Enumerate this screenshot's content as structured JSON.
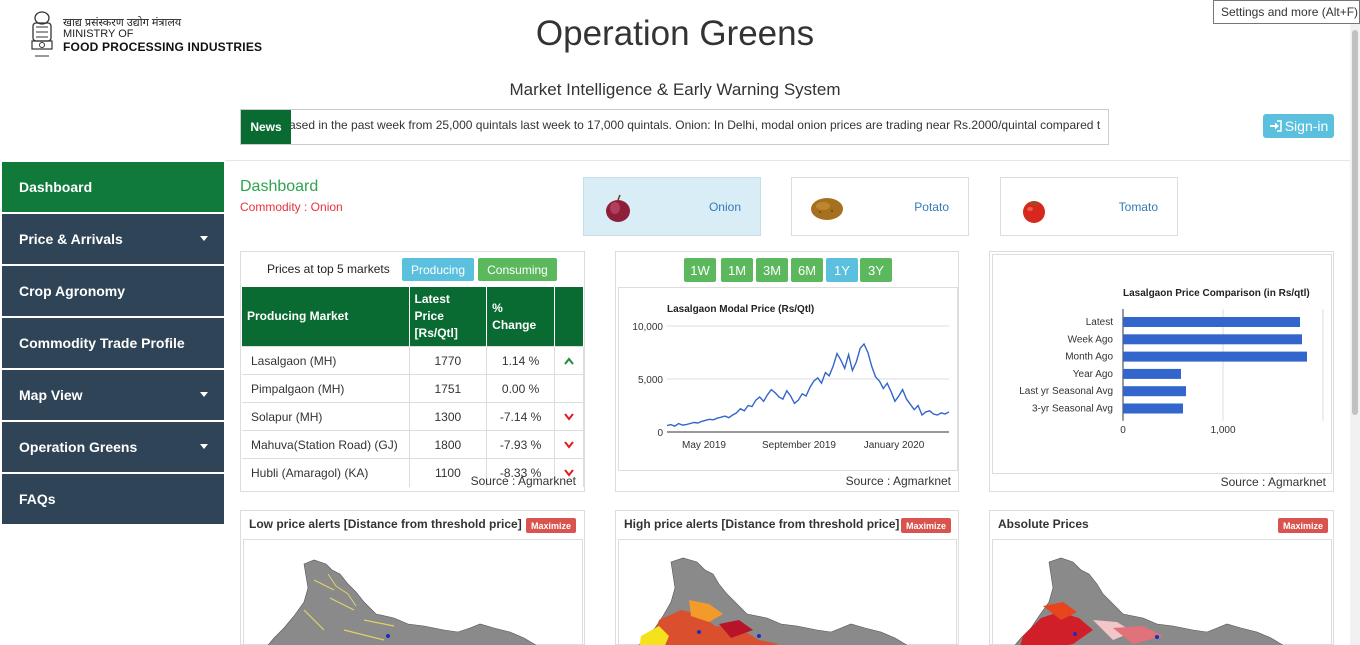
{
  "browser": {
    "tooltip": "Settings and more (Alt+F)"
  },
  "header": {
    "logo": {
      "hindi": "खाद्य प्रसंस्करण उद्योग मंत्रालय",
      "line1": "MINISTRY OF",
      "line2": "FOOD PROCESSING INDUSTRIES"
    },
    "title": "Operation Greens",
    "subtitle": "Market Intelligence & Early Warning System",
    "news_label": "News",
    "news_text": "ased in the past week from 25,000 quintals last week to 17,000 quintals. Onion: In Delhi, modal onion prices are trading near Rs.2000/quintal compared t",
    "signin": "Sign-in"
  },
  "sidebar": {
    "items": [
      {
        "label": "Dashboard",
        "active": true,
        "dropdown": false
      },
      {
        "label": "Price & Arrivals",
        "active": false,
        "dropdown": true
      },
      {
        "label": "Crop Agronomy",
        "active": false,
        "dropdown": false
      },
      {
        "label": "Commodity Trade Profile",
        "active": false,
        "dropdown": false
      },
      {
        "label": "Map View",
        "active": false,
        "dropdown": true
      },
      {
        "label": "Operation Greens",
        "active": false,
        "dropdown": true
      },
      {
        "label": "FAQs",
        "active": false,
        "dropdown": false
      }
    ]
  },
  "dashboard": {
    "title": "Dashboard",
    "commodity_label": "Commodity : Onion",
    "commodities": [
      {
        "name": "Onion",
        "icon": "onion-icon",
        "selected": true
      },
      {
        "name": "Potato",
        "icon": "potato-icon",
        "selected": false
      },
      {
        "name": "Tomato",
        "icon": "tomato-icon",
        "selected": false
      }
    ]
  },
  "prices_panel": {
    "title": "Prices at top 5 markets",
    "tab_producing": "Producing",
    "tab_consuming": "Consuming",
    "columns": [
      "Producing Market",
      "Latest Price [Rs/Qtl]",
      "% Change",
      ""
    ],
    "rows": [
      {
        "market": "Lasalgaon (MH)",
        "price": "1770",
        "change": "1.14 %",
        "trend": "up"
      },
      {
        "market": "Pimpalgaon (MH)",
        "price": "1751",
        "change": "0.00 %",
        "trend": "none"
      },
      {
        "market": "Solapur (MH)",
        "price": "1300",
        "change": "-7.14 %",
        "trend": "down"
      },
      {
        "market": "Mahuva(Station Road) (GJ)",
        "price": "1800",
        "change": "-7.93 %",
        "trend": "down"
      },
      {
        "market": "Hubli (Amaragol) (KA)",
        "price": "1100",
        "change": "-8.33 %",
        "trend": "down"
      }
    ],
    "source": "Source : Agmarknet"
  },
  "trend_panel": {
    "ranges": [
      "1W",
      "1M",
      "3M",
      "6M",
      "1Y",
      "3Y"
    ],
    "active_range": "1Y",
    "source": "Source : Agmarknet"
  },
  "bars_panel": {
    "source": "Source : Agmarknet"
  },
  "alerts": {
    "low": "Low price alerts [Distance from threshold price]",
    "high": "High price alerts [Distance from threshold price]",
    "absolute": "Absolute Prices",
    "maximize": "Maximize"
  },
  "colors": {
    "green": "#0a6b32",
    "nav": "#2f4457",
    "accent_button": "#5cb85c",
    "info_button": "#5bc0de",
    "bar": "#3366cc",
    "alert": "#d9534f"
  },
  "chart_data": [
    {
      "type": "line",
      "title": "Lasalgaon Modal Price (Rs/Qtl)",
      "x_ticks": [
        "May 2019",
        "September 2019",
        "January 2020"
      ],
      "y_ticks": [
        "0",
        "5,000",
        "10,000"
      ],
      "ylim": [
        0,
        10000
      ],
      "series": [
        {
          "values": [
            600,
            700,
            550,
            800,
            650,
            700,
            800,
            900,
            850,
            1000,
            1100,
            1200,
            1150,
            1300,
            1400,
            1500,
            1350,
            1600,
            1800,
            2200,
            2000,
            2500,
            2400,
            3000,
            3300,
            2900,
            3500,
            4000,
            3700,
            3300,
            3100,
            3900,
            3400,
            2700,
            3000,
            3600,
            3400,
            4200,
            4800,
            5100,
            4600,
            5600,
            5300,
            6200,
            7400,
            6800,
            6000,
            7300,
            5800,
            6600,
            7900,
            8300,
            7500,
            6200,
            5200,
            4800,
            4100,
            4600,
            3800,
            2900,
            3400,
            4000,
            3100,
            2600,
            2100,
            2500,
            1600,
            1900,
            2000,
            1700,
            1600,
            1800,
            1700,
            1900
          ]
        }
      ],
      "grid": true
    },
    {
      "type": "bar",
      "orientation": "horizontal",
      "title": "Lasalgaon Price Comparison (in Rs/qtl)",
      "categories": [
        "Latest",
        "Week Ago",
        "Month Ago",
        "Year Ago",
        "Last yr Seasonal Avg",
        "3-yr Seasonal Avg"
      ],
      "values": [
        1770,
        1790,
        1840,
        580,
        630,
        600
      ],
      "x_ticks": [
        "0",
        "1,000"
      ],
      "xlim": [
        0,
        2000
      ]
    }
  ]
}
